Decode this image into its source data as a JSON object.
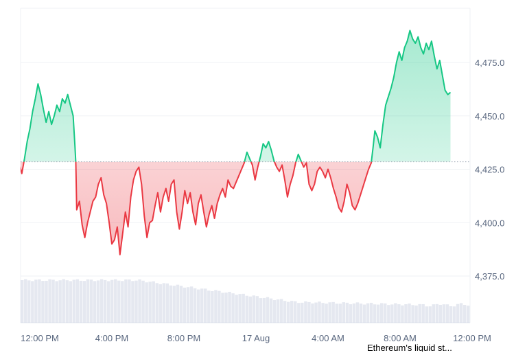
{
  "chart_data": {
    "type": "area",
    "title": "",
    "xlabel": "",
    "ylabel": "",
    "baseline": 4428.5,
    "ylim": [
      4350,
      4500
    ],
    "y_ticks": [
      "4,375.0",
      "4,400.0",
      "4,425.0",
      "4,450.0",
      "4,475.0"
    ],
    "y_tick_values": [
      4375,
      4400,
      4425,
      4450,
      4475
    ],
    "x_ticks": [
      "12:00 PM",
      "4:00 PM",
      "8:00 PM",
      "17 Aug",
      "4:00 AM",
      "8:00 AM",
      "12:00 PM"
    ],
    "x_tick_hours": [
      0,
      4,
      8,
      12,
      16,
      20,
      24
    ],
    "x_range_hours": [
      -2.1,
      23.8
    ],
    "colors": {
      "up": "#16c784",
      "down": "#ea3943",
      "baseline": "#9aa4b2",
      "grid": "#eff2f5",
      "volume": "#cfd6e4"
    },
    "series": [
      {
        "points": [
          [
            -2.1,
            4427.5
          ],
          [
            -1.9,
            4422
          ],
          [
            -1.75,
            4431
          ],
          [
            -1.6,
            4432
          ],
          [
            -1.45,
            4429
          ],
          [
            -1.3,
            4421
          ],
          [
            -1.15,
            4428
          ],
          [
            -1.0,
            4423
          ],
          [
            -0.85,
            4430
          ],
          [
            -0.7,
            4438
          ],
          [
            -0.55,
            4444
          ],
          [
            -0.4,
            4452
          ],
          [
            -0.25,
            4458
          ],
          [
            -0.1,
            4465
          ],
          [
            0.05,
            4460
          ],
          [
            0.2,
            4453
          ],
          [
            0.35,
            4447
          ],
          [
            0.5,
            4452
          ],
          [
            0.65,
            4446
          ],
          [
            0.8,
            4450
          ],
          [
            0.95,
            4455
          ],
          [
            1.1,
            4452
          ],
          [
            1.25,
            4458
          ],
          [
            1.4,
            4456
          ],
          [
            1.55,
            4460
          ],
          [
            1.7,
            4455
          ],
          [
            1.85,
            4450
          ],
          [
            1.95,
            4436
          ],
          [
            2.0,
            4428
          ],
          [
            2.05,
            4406
          ],
          [
            2.2,
            4410
          ],
          [
            2.35,
            4399
          ],
          [
            2.5,
            4393
          ],
          [
            2.65,
            4400
          ],
          [
            2.8,
            4405
          ],
          [
            2.95,
            4410
          ],
          [
            3.1,
            4412
          ],
          [
            3.25,
            4418
          ],
          [
            3.4,
            4421
          ],
          [
            3.55,
            4413
          ],
          [
            3.7,
            4409
          ],
          [
            3.85,
            4400
          ],
          [
            4.0,
            4390
          ],
          [
            4.15,
            4392
          ],
          [
            4.3,
            4398
          ],
          [
            4.45,
            4385
          ],
          [
            4.6,
            4395
          ],
          [
            4.75,
            4405
          ],
          [
            4.9,
            4398
          ],
          [
            5.05,
            4412
          ],
          [
            5.2,
            4420
          ],
          [
            5.35,
            4424
          ],
          [
            5.5,
            4426
          ],
          [
            5.65,
            4418
          ],
          [
            5.8,
            4403
          ],
          [
            5.95,
            4393
          ],
          [
            6.1,
            4400
          ],
          [
            6.25,
            4401
          ],
          [
            6.4,
            4408
          ],
          [
            6.55,
            4414
          ],
          [
            6.7,
            4405
          ],
          [
            6.85,
            4412
          ],
          [
            7.0,
            4416
          ],
          [
            7.15,
            4410
          ],
          [
            7.3,
            4418
          ],
          [
            7.45,
            4420
          ],
          [
            7.6,
            4405
          ],
          [
            7.75,
            4397
          ],
          [
            7.9,
            4405
          ],
          [
            8.05,
            4415
          ],
          [
            8.2,
            4409
          ],
          [
            8.35,
            4414
          ],
          [
            8.5,
            4405
          ],
          [
            8.65,
            4399
          ],
          [
            8.8,
            4409
          ],
          [
            8.95,
            4413
          ],
          [
            9.1,
            4405
          ],
          [
            9.25,
            4398
          ],
          [
            9.4,
            4404
          ],
          [
            9.55,
            4408
          ],
          [
            9.7,
            4402
          ],
          [
            9.85,
            4409
          ],
          [
            10.0,
            4413
          ],
          [
            10.15,
            4416
          ],
          [
            10.3,
            4412
          ],
          [
            10.45,
            4420
          ],
          [
            10.6,
            4417
          ],
          [
            10.75,
            4416
          ],
          [
            10.9,
            4419
          ],
          [
            11.05,
            4422
          ],
          [
            11.2,
            4425
          ],
          [
            11.35,
            4428
          ],
          [
            11.5,
            4433
          ],
          [
            11.65,
            4430
          ],
          [
            11.8,
            4427
          ],
          [
            11.95,
            4420
          ],
          [
            12.1,
            4426
          ],
          [
            12.25,
            4431
          ],
          [
            12.4,
            4437
          ],
          [
            12.55,
            4435
          ],
          [
            12.7,
            4438
          ],
          [
            12.85,
            4434
          ],
          [
            13.0,
            4429
          ],
          [
            13.15,
            4426
          ],
          [
            13.3,
            4424
          ],
          [
            13.45,
            4427
          ],
          [
            13.6,
            4420
          ],
          [
            13.75,
            4412
          ],
          [
            13.9,
            4418
          ],
          [
            14.05,
            4422
          ],
          [
            14.2,
            4428
          ],
          [
            14.35,
            4432
          ],
          [
            14.5,
            4429
          ],
          [
            14.65,
            4426
          ],
          [
            14.8,
            4428
          ],
          [
            14.95,
            4418
          ],
          [
            15.1,
            4415
          ],
          [
            15.25,
            4418
          ],
          [
            15.4,
            4424
          ],
          [
            15.55,
            4426
          ],
          [
            15.7,
            4424
          ],
          [
            15.85,
            4421
          ],
          [
            16.0,
            4425
          ],
          [
            16.15,
            4421
          ],
          [
            16.3,
            4416
          ],
          [
            16.45,
            4412
          ],
          [
            16.6,
            4407
          ],
          [
            16.75,
            4405
          ],
          [
            16.9,
            4410
          ],
          [
            17.05,
            4418
          ],
          [
            17.2,
            4414
          ],
          [
            17.35,
            4408
          ],
          [
            17.5,
            4406
          ],
          [
            17.65,
            4409
          ],
          [
            17.8,
            4413
          ],
          [
            17.95,
            4417
          ],
          [
            18.1,
            4421
          ],
          [
            18.25,
            4425
          ],
          [
            18.4,
            4428
          ],
          [
            18.5,
            4435
          ],
          [
            18.6,
            4443
          ],
          [
            18.75,
            4440
          ],
          [
            18.9,
            4435
          ],
          [
            19.05,
            4446
          ],
          [
            19.2,
            4455
          ],
          [
            19.35,
            4459
          ],
          [
            19.5,
            4463
          ],
          [
            19.65,
            4468
          ],
          [
            19.8,
            4475
          ],
          [
            19.95,
            4480
          ],
          [
            20.1,
            4476
          ],
          [
            20.25,
            4482
          ],
          [
            20.4,
            4485
          ],
          [
            20.55,
            4490
          ],
          [
            20.7,
            4486
          ],
          [
            20.85,
            4484
          ],
          [
            21.0,
            4487
          ],
          [
            21.15,
            4482
          ],
          [
            21.3,
            4479
          ],
          [
            21.45,
            4484
          ],
          [
            21.6,
            4481
          ],
          [
            21.75,
            4485
          ],
          [
            21.9,
            4478
          ],
          [
            22.05,
            4472
          ],
          [
            22.2,
            4476
          ],
          [
            22.35,
            4469
          ],
          [
            22.5,
            4462
          ],
          [
            22.65,
            4460
          ],
          [
            22.8,
            4461
          ]
        ]
      }
    ],
    "volume_bars": 130
  },
  "footer": {
    "text": "Ethereum's liquid st..."
  }
}
